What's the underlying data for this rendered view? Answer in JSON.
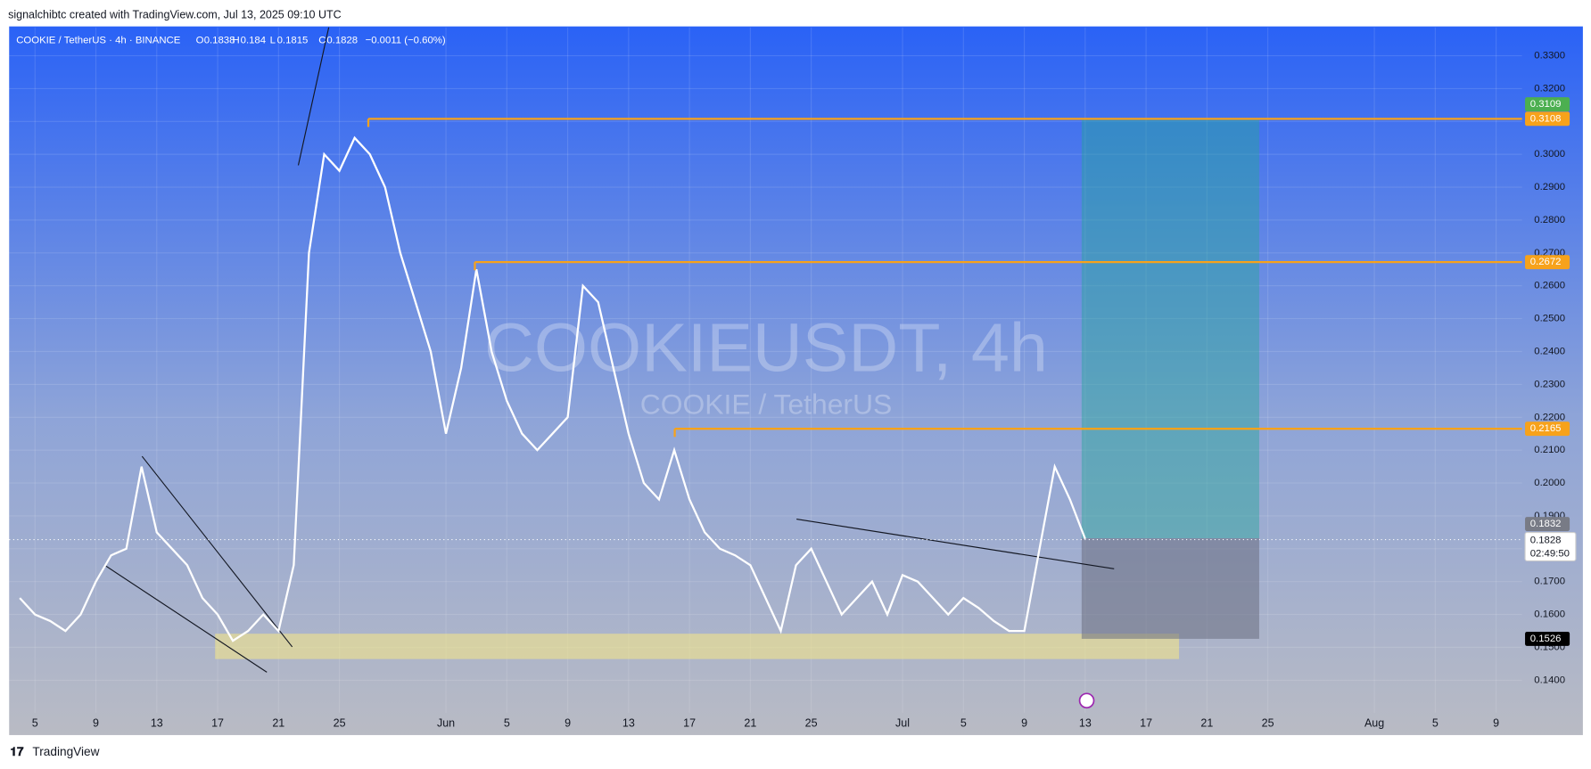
{
  "header": {
    "attribution": "signalchibtc created with TradingView.com, Jul 13, 2025 09:10 UTC",
    "footer_brand": "TradingView"
  },
  "legend": {
    "symbol": "COOKIE / TetherUS · 4h · BINANCE",
    "o_label": "O",
    "open": 0.1838,
    "h_label": "H",
    "high": 0.184,
    "l_label": "L",
    "low": 0.1815,
    "c_label": "C",
    "close": 0.1828,
    "change": "−0.0011 (−0.60%)"
  },
  "watermark": {
    "title": "COOKIEUSDT, 4h",
    "subtitle": "COOKIE / TetherUS"
  },
  "chart_data": {
    "type": "line",
    "color": "#ffffff",
    "x": [
      3,
      4,
      5,
      6,
      7,
      8,
      9,
      10,
      11,
      12,
      13,
      14,
      15,
      16,
      17,
      18,
      19,
      20,
      21,
      22,
      23,
      24,
      25,
      26,
      27,
      28,
      29,
      30,
      31,
      32,
      33,
      34,
      35,
      36,
      37,
      38,
      39,
      40,
      41,
      42,
      43,
      44,
      45,
      46,
      47,
      48,
      49,
      50,
      51,
      52,
      53,
      54,
      55,
      56,
      57,
      58,
      59,
      60,
      61,
      62,
      63,
      64,
      65,
      66,
      67,
      68,
      69,
      70,
      71,
      72,
      73
    ],
    "values": [
      0.165,
      0.16,
      0.158,
      0.155,
      0.16,
      0.17,
      0.178,
      0.18,
      0.205,
      0.185,
      0.18,
      0.175,
      0.165,
      0.16,
      0.152,
      0.155,
      0.16,
      0.155,
      0.175,
      0.27,
      0.3,
      0.295,
      0.305,
      0.3,
      0.29,
      0.27,
      0.255,
      0.24,
      0.215,
      0.235,
      0.265,
      0.24,
      0.225,
      0.215,
      0.21,
      0.215,
      0.22,
      0.26,
      0.255,
      0.235,
      0.215,
      0.2,
      0.195,
      0.21,
      0.195,
      0.185,
      0.18,
      0.178,
      0.175,
      0.165,
      0.155,
      0.175,
      0.18,
      0.17,
      0.16,
      0.165,
      0.17,
      0.16,
      0.172,
      0.17,
      0.165,
      0.16,
      0.165,
      0.162,
      0.158,
      0.155,
      0.155,
      0.18,
      0.205,
      0.195,
      0.183
    ],
    "xlim": [
      2.3,
      101.7
    ],
    "xticks": [
      {
        "value": 4,
        "label": "5"
      },
      {
        "value": 8,
        "label": "9"
      },
      {
        "value": 12,
        "label": "13"
      },
      {
        "value": 16,
        "label": "17"
      },
      {
        "value": 20,
        "label": "21"
      },
      {
        "value": 24,
        "label": "25"
      },
      {
        "value": 31,
        "label": "Jun"
      },
      {
        "value": 35,
        "label": "5"
      },
      {
        "value": 39,
        "label": "9"
      },
      {
        "value": 43,
        "label": "13"
      },
      {
        "value": 47,
        "label": "17"
      },
      {
        "value": 51,
        "label": "21"
      },
      {
        "value": 55,
        "label": "25"
      },
      {
        "value": 61,
        "label": "Jul"
      },
      {
        "value": 65,
        "label": "5"
      },
      {
        "value": 69,
        "label": "9"
      },
      {
        "value": 73,
        "label": "13"
      },
      {
        "value": 77,
        "label": "17"
      },
      {
        "value": 81,
        "label": "21"
      },
      {
        "value": 85,
        "label": "25"
      },
      {
        "value": 92,
        "label": "Aug"
      },
      {
        "value": 96,
        "label": "5"
      },
      {
        "value": 100,
        "label": "9"
      }
    ],
    "ylim": [
      0.1301,
      0.3386
    ],
    "yticks": [
      {
        "value": 0.14,
        "label": "0.1400"
      },
      {
        "value": 0.15,
        "label": "0.1500"
      },
      {
        "value": 0.16,
        "label": "0.1600"
      },
      {
        "value": 0.17,
        "label": "0.1700"
      },
      {
        "value": 0.18,
        "label": "0.1800"
      },
      {
        "value": 0.19,
        "label": "0.1900"
      },
      {
        "value": 0.2,
        "label": "0.2000"
      },
      {
        "value": 0.21,
        "label": "0.2100"
      },
      {
        "value": 0.22,
        "label": "0.2200"
      },
      {
        "value": 0.23,
        "label": "0.2300"
      },
      {
        "value": 0.24,
        "label": "0.2400"
      },
      {
        "value": 0.25,
        "label": "0.2500"
      },
      {
        "value": 0.26,
        "label": "0.2600"
      },
      {
        "value": 0.27,
        "label": "0.2700"
      },
      {
        "value": 0.28,
        "label": "0.2800"
      },
      {
        "value": 0.29,
        "label": "0.2900"
      },
      {
        "value": 0.3,
        "label": "0.3000"
      },
      {
        "value": 0.31,
        "label": "0.3100"
      },
      {
        "value": 0.32,
        "label": "0.3200"
      },
      {
        "value": 0.33,
        "label": "0.3300"
      }
    ],
    "grid": true,
    "levels": [
      0.3108,
      0.2672,
      0.2165,
      0.1526
    ],
    "level_color": "#f7a21b",
    "target": 0.3109,
    "entry": 0.1832,
    "countdown": "02:49:50"
  }
}
